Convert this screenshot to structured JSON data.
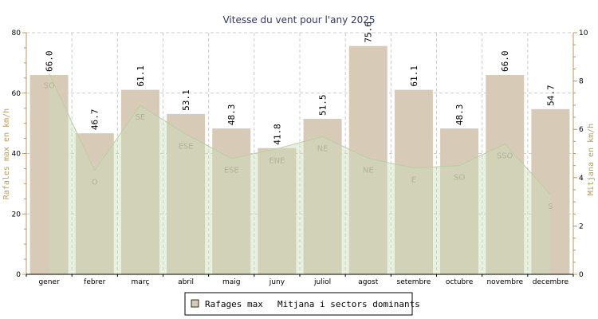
{
  "chart_data": {
    "type": "bar",
    "title": "Vitesse du vent pour l'any 2025",
    "categories": [
      "gener",
      "febrer",
      "març",
      "abril",
      "maig",
      "juny",
      "juliol",
      "agost",
      "setembre",
      "octubre",
      "novembre",
      "decembre"
    ],
    "series": [
      {
        "name": "Rafages max",
        "type": "bar",
        "axis": "left",
        "color": "#d7cbb8",
        "values": [
          66.0,
          46.7,
          61.1,
          53.1,
          48.3,
          41.8,
          51.5,
          75.6,
          61.1,
          48.3,
          66.0,
          54.7
        ],
        "labels": [
          "66.0",
          "46.7",
          "61.1",
          "53.1",
          "48.3",
          "41.8",
          "51.5",
          "75.6",
          "61.1",
          "48.3",
          "66.0",
          "54.7"
        ]
      },
      {
        "name": "Mitjana i sectors dominants",
        "type": "area",
        "axis": "right",
        "color": "#c8dcb4",
        "values": [
          8.3,
          4.3,
          7.0,
          5.8,
          4.8,
          5.2,
          5.7,
          4.8,
          4.4,
          4.5,
          5.4,
          3.3
        ],
        "sectors": [
          "SO",
          "O",
          "SE",
          "ESE",
          "ESE",
          "ENE",
          "NE",
          "NE",
          "E",
          "SO",
          "SSO",
          "S"
        ]
      }
    ],
    "ylabel": "Rafales max en km/h",
    "ylabel_right": "Mitjana en km/h",
    "ylim": [
      0,
      80
    ],
    "yticks": [
      0,
      20,
      40,
      60,
      80
    ],
    "ylim_right": [
      0,
      10
    ],
    "yticks_right": [
      0,
      2,
      4,
      6,
      8,
      10
    ],
    "grid": true,
    "legend_position": "bottom"
  }
}
